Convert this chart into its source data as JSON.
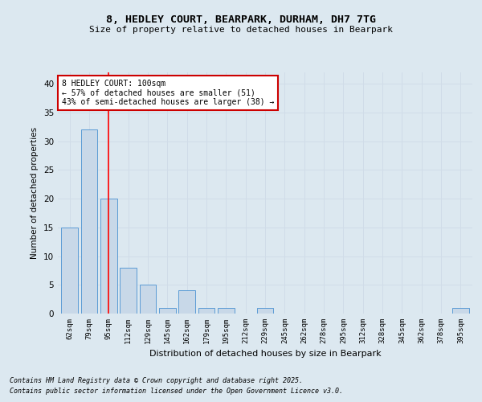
{
  "title_line1": "8, HEDLEY COURT, BEARPARK, DURHAM, DH7 7TG",
  "title_line2": "Size of property relative to detached houses in Bearpark",
  "xlabel": "Distribution of detached houses by size in Bearpark",
  "ylabel": "Number of detached properties",
  "categories": [
    "62sqm",
    "79sqm",
    "95sqm",
    "112sqm",
    "129sqm",
    "145sqm",
    "162sqm",
    "179sqm",
    "195sqm",
    "212sqm",
    "229sqm",
    "245sqm",
    "262sqm",
    "278sqm",
    "295sqm",
    "312sqm",
    "328sqm",
    "345sqm",
    "362sqm",
    "378sqm",
    "395sqm"
  ],
  "values": [
    15,
    32,
    20,
    8,
    5,
    1,
    4,
    1,
    1,
    0,
    1,
    0,
    0,
    0,
    0,
    0,
    0,
    0,
    0,
    0,
    1
  ],
  "bar_color": "#c8d8e8",
  "bar_edge_color": "#5b9bd5",
  "red_line_index": 2,
  "ylim": [
    0,
    42
  ],
  "yticks": [
    0,
    5,
    10,
    15,
    20,
    25,
    30,
    35,
    40
  ],
  "annotation_title": "8 HEDLEY COURT: 100sqm",
  "annotation_line2": "← 57% of detached houses are smaller (51)",
  "annotation_line3": "43% of semi-detached houses are larger (38) →",
  "annotation_box_color": "#ffffff",
  "annotation_box_edge": "#cc0000",
  "grid_color": "#d0dce8",
  "background_color": "#dce8f0",
  "footnote1": "Contains HM Land Registry data © Crown copyright and database right 2025.",
  "footnote2": "Contains public sector information licensed under the Open Government Licence v3.0."
}
